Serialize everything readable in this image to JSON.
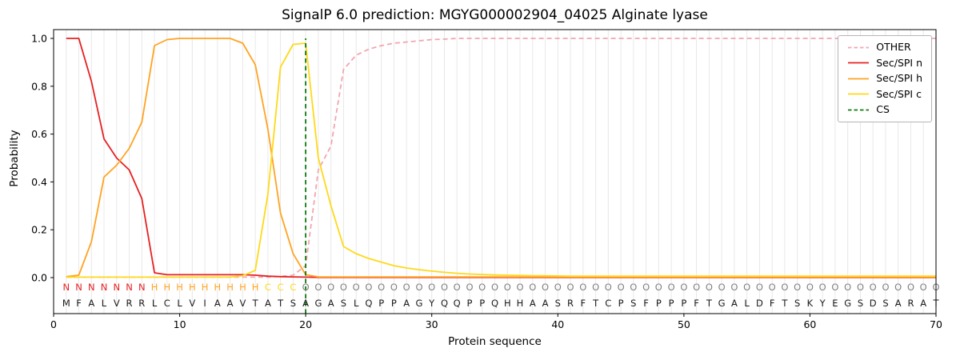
{
  "title": "SignalP 6.0 prediction: MGYG000002904_04025 Alginate lyase",
  "axes": {
    "xlabel": "Protein sequence",
    "ylabel": "Probability",
    "xticks": [
      0,
      10,
      20,
      30,
      40,
      50,
      60,
      70
    ],
    "yticks": [
      "0.0",
      "0.2",
      "0.4",
      "0.6",
      "0.8",
      "1.0"
    ]
  },
  "legend": {
    "items": [
      {
        "label": "OTHER",
        "color": "#f3a5ae",
        "dash": true
      },
      {
        "label": "Sec/SPI n",
        "color": "#e62020",
        "dash": false
      },
      {
        "label": "Sec/SPI h",
        "color": "#ffa320",
        "dash": false
      },
      {
        "label": "Sec/SPI c",
        "color": "#ffd918",
        "dash": false
      },
      {
        "label": "CS",
        "color": "#0e7a0e",
        "dash": true
      }
    ]
  },
  "chart_data": {
    "type": "line",
    "title": "SignalP 6.0 prediction: MGYG000002904_04025 Alginate lyase",
    "xlabel": "Protein sequence",
    "ylabel": "Probability",
    "xlim": [
      0,
      70
    ],
    "ylim": [
      0.0,
      1.0
    ],
    "legend_position": "upper right",
    "grid": "vertical line per residue",
    "grid_color": "#e8e8e8",
    "cs_position": 20,
    "cs_color": "#0e7a0e",
    "sequence": "MFALVRRLCLVIAAVTATSAGASLQPPAGYQQPPQHHAASRFTCPSFPPPFTGALDFTSKYEGSDSARAT",
    "regions": "NNNNNNNHHHHHHHHHCCCOOOOOOOOOOOOOOOOOOOOOOOOOOOOOOOOOOOOOOOOOOOOOOOOOOO",
    "region_colors": {
      "N": "#e62020",
      "H": "#ffa320",
      "C": "#ffd918",
      "O": "#808080"
    },
    "series": [
      {
        "name": "OTHER",
        "color": "#f3a5ae",
        "dash": true,
        "values": [
          0.002,
          0.002,
          0.002,
          0.002,
          0.002,
          0.002,
          0.002,
          0.002,
          0.002,
          0.002,
          0.002,
          0.002,
          0.002,
          0.002,
          0.002,
          0.002,
          0.002,
          0.005,
          0.01,
          0.05,
          0.45,
          0.55,
          0.87,
          0.93,
          0.955,
          0.97,
          0.98,
          0.985,
          0.99,
          0.995,
          0.997,
          1,
          1,
          1,
          1,
          1,
          1,
          1,
          1,
          1,
          1,
          1,
          1,
          1,
          1,
          1,
          1,
          1,
          1,
          1,
          1,
          1,
          1,
          1,
          1,
          1,
          1,
          1,
          1,
          1,
          1,
          1,
          1,
          1,
          1,
          1,
          1,
          1,
          1,
          1
        ]
      },
      {
        "name": "Sec/SPI n",
        "color": "#e62020",
        "dash": false,
        "values": [
          1,
          1,
          0.82,
          0.58,
          0.5,
          0.45,
          0.33,
          0.02,
          0.012,
          0.012,
          0.012,
          0.012,
          0.012,
          0.012,
          0.012,
          0.01,
          0.006,
          0.004,
          0.003,
          0.002,
          0.001,
          0.001,
          0.001,
          0.001,
          0.001,
          0.001,
          0.001,
          0.001,
          0.001,
          0.001,
          0.001,
          0.001,
          0.001,
          0.001,
          0.001,
          0.001,
          0.001,
          0.001,
          0.001,
          0.001,
          0.001,
          0.001,
          0.001,
          0.001,
          0.001,
          0.001,
          0.001,
          0.001,
          0.001,
          0.001,
          0.001,
          0.001,
          0.001,
          0.001,
          0.001,
          0.001,
          0.001,
          0.001,
          0.001,
          0.001,
          0.001,
          0.001,
          0.001,
          0.001,
          0.001,
          0.001,
          0.001,
          0.001,
          0.001,
          0.001
        ]
      },
      {
        "name": "Sec/SPI h",
        "color": "#ffa320",
        "dash": false,
        "values": [
          0.004,
          0.01,
          0.15,
          0.42,
          0.47,
          0.54,
          0.65,
          0.97,
          0.995,
          1,
          1,
          1,
          1,
          1,
          0.98,
          0.89,
          0.62,
          0.27,
          0.1,
          0.012,
          0.003,
          0.003,
          0.003,
          0.003,
          0.003,
          0.003,
          0.003,
          0.003,
          0.003,
          0.003,
          0.003,
          0.003,
          0.003,
          0.003,
          0.003,
          0.003,
          0.003,
          0.003,
          0.003,
          0.003,
          0.003,
          0.003,
          0.003,
          0.003,
          0.003,
          0.003,
          0.003,
          0.003,
          0.003,
          0.003,
          0.003,
          0.003,
          0.003,
          0.003,
          0.003,
          0.003,
          0.003,
          0.003,
          0.003,
          0.003,
          0.003,
          0.003,
          0.003,
          0.003,
          0.003,
          0.003,
          0.003,
          0.003,
          0.003,
          0.003
        ]
      },
      {
        "name": "Sec/SPI c",
        "color": "#ffd918",
        "dash": false,
        "values": [
          0.002,
          0.002,
          0.002,
          0.002,
          0.002,
          0.002,
          0.002,
          0.002,
          0.002,
          0.002,
          0.002,
          0.002,
          0.002,
          0.002,
          0.008,
          0.03,
          0.35,
          0.88,
          0.975,
          0.98,
          0.5,
          0.3,
          0.13,
          0.1,
          0.08,
          0.065,
          0.05,
          0.04,
          0.033,
          0.027,
          0.022,
          0.018,
          0.015,
          0.013,
          0.011,
          0.01,
          0.009,
          0.008,
          0.008,
          0.007,
          0.006,
          0.006,
          0.006,
          0.006,
          0.006,
          0.006,
          0.006,
          0.006,
          0.006,
          0.006,
          0.006,
          0.006,
          0.006,
          0.006,
          0.006,
          0.006,
          0.006,
          0.006,
          0.006,
          0.006,
          0.006,
          0.006,
          0.006,
          0.006,
          0.006,
          0.006,
          0.006,
          0.006,
          0.006,
          0.006
        ]
      }
    ]
  }
}
